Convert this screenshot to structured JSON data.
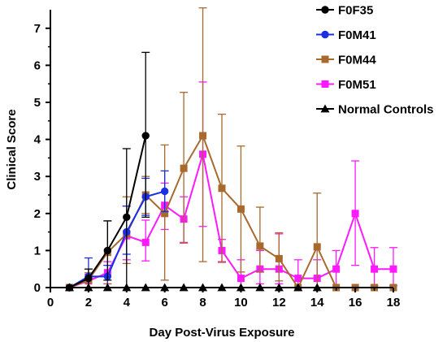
{
  "chart_data": {
    "type": "line",
    "title": "",
    "xlabel": "Day Post-Virus Exposure",
    "ylabel": "Clinical Score",
    "xlim": [
      0,
      18
    ],
    "ylim": [
      0,
      7.5
    ],
    "xticks": [
      0,
      2,
      4,
      6,
      8,
      10,
      12,
      14,
      16,
      18
    ],
    "yticks": [
      0,
      1,
      2,
      3,
      4,
      5,
      6,
      7
    ],
    "legend_position": "top-right",
    "grid": false,
    "series": [
      {
        "name": "F0F35",
        "color": "#000000",
        "marker": "circle",
        "x": [
          1,
          2,
          3,
          4,
          5
        ],
        "y": [
          0,
          0.25,
          1.0,
          1.9,
          4.1
        ],
        "err_low": [
          0,
          0.25,
          0.8,
          1.9,
          2.2
        ],
        "err_high": [
          0,
          0.25,
          0.8,
          1.85,
          2.25
        ]
      },
      {
        "name": "F0M41",
        "color": "#1a2fe6",
        "marker": "circle",
        "x": [
          1,
          2,
          3,
          4,
          5,
          6
        ],
        "y": [
          0,
          0.3,
          0.3,
          1.5,
          2.45,
          2.6
        ],
        "err_low": [
          0,
          0.3,
          0.3,
          0.6,
          0.5,
          0.55
        ],
        "err_high": [
          0,
          0.5,
          0.3,
          0.7,
          0.5,
          0.55
        ]
      },
      {
        "name": "F0M44",
        "color": "#a8692d",
        "marker": "square",
        "x": [
          1,
          2,
          3,
          4,
          5,
          6,
          7,
          8,
          9,
          10,
          11,
          12,
          13,
          14,
          15,
          16,
          17,
          18
        ],
        "y": [
          0,
          0.2,
          0.95,
          1.45,
          2.5,
          2.0,
          3.22,
          4.1,
          2.68,
          2.12,
          1.12,
          0.78,
          0,
          1.1,
          0,
          0,
          0,
          0
        ],
        "err_low": [
          0,
          0.2,
          0.85,
          0.8,
          0.5,
          1.8,
          2.0,
          3.4,
          2.0,
          1.7,
          0.7,
          0.6,
          0,
          1.1,
          0,
          0,
          0,
          0
        ],
        "err_high": [
          0,
          0.2,
          0.85,
          1.0,
          0.5,
          1.85,
          2.05,
          3.45,
          2.0,
          1.7,
          1.05,
          0.7,
          0,
          1.45,
          0,
          0,
          0,
          0
        ]
      },
      {
        "name": "F0M51",
        "color": "#ff19ff",
        "marker": "square",
        "x": [
          1,
          2,
          3,
          4,
          5,
          6,
          7,
          8,
          9,
          10,
          11,
          12,
          13,
          14,
          15,
          16,
          17,
          18
        ],
        "y": [
          0,
          0.18,
          0.4,
          1.4,
          1.22,
          2.22,
          1.85,
          3.6,
          1.0,
          0.25,
          0.5,
          0.5,
          0.25,
          0.25,
          0.5,
          2.0,
          0.5,
          0.5
        ],
        "err_low": [
          0,
          0.18,
          0.3,
          0.65,
          0.5,
          0.65,
          0.65,
          1.95,
          0.3,
          0.25,
          0.4,
          0.4,
          0.25,
          0.25,
          0.5,
          1.4,
          0.45,
          0.45
        ],
        "err_high": [
          0,
          0.18,
          0.3,
          0.8,
          0.6,
          0.6,
          0.6,
          1.95,
          0.3,
          0.5,
          0.5,
          0.95,
          0.5,
          0.5,
          0.5,
          1.42,
          0.58,
          0.58
        ]
      },
      {
        "name": "Normal Controls",
        "color": "#000000",
        "marker": "triangle",
        "x": [
          1,
          2,
          3,
          4,
          5,
          6,
          7,
          8,
          9,
          10,
          11,
          12,
          13,
          14
        ],
        "y": [
          0,
          0,
          0,
          0,
          0,
          0,
          0,
          0,
          0,
          0,
          0,
          0,
          0,
          0
        ],
        "err_low": [
          0,
          0,
          0,
          0,
          0,
          0,
          0,
          0,
          0,
          0,
          0,
          0,
          0,
          0
        ],
        "err_high": [
          0,
          0,
          0,
          0,
          0,
          0,
          0,
          0,
          0,
          0,
          0,
          0,
          0,
          0
        ]
      }
    ]
  }
}
